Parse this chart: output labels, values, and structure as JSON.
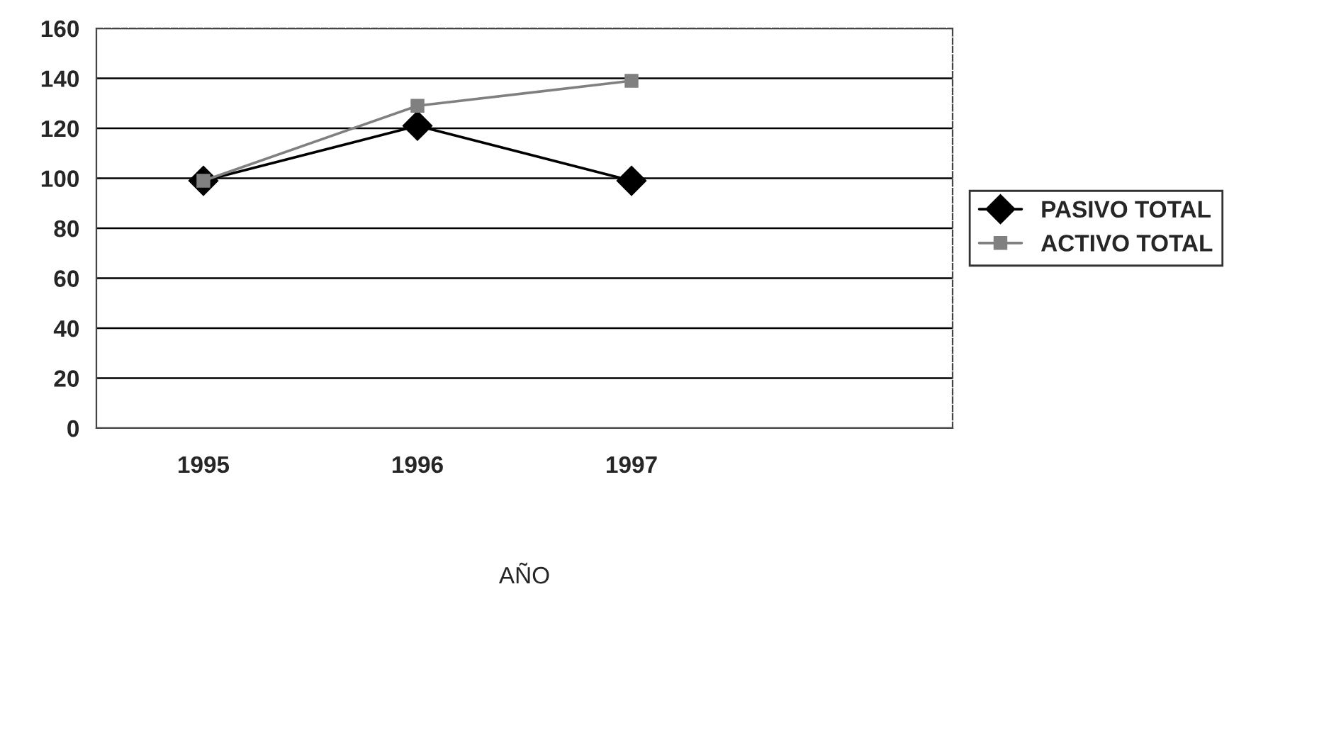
{
  "chart_data": {
    "type": "line",
    "xlabel": "AÑO",
    "categories": [
      "1995",
      "1996",
      "1997",
      null
    ],
    "series": [
      {
        "name": "PASIVO TOTAL",
        "color": "#000000",
        "marker": "diamond",
        "values": [
          99,
          121,
          99,
          null
        ]
      },
      {
        "name": "ACTIVO TOTAL",
        "color": "#808080",
        "marker": "square",
        "values": [
          99,
          129,
          139,
          null
        ]
      }
    ],
    "ylim": [
      0,
      160
    ],
    "yticks": [
      0,
      20,
      40,
      60,
      80,
      100,
      120,
      140,
      160
    ],
    "grid": "y",
    "legend": "right"
  }
}
